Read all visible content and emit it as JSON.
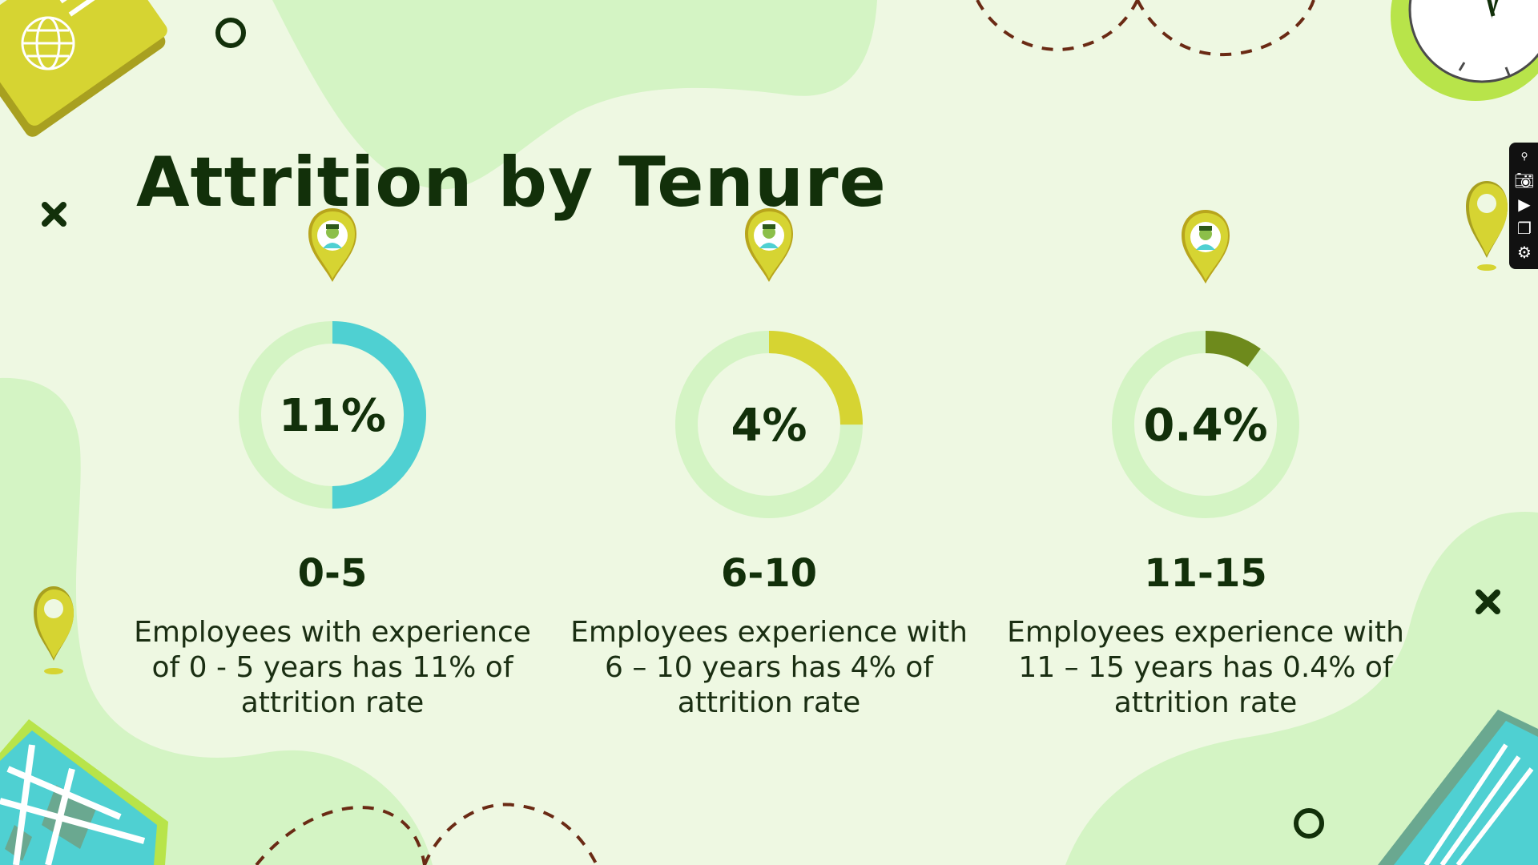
{
  "title": "Attrition by Tenure",
  "colors": {
    "background": "#eef8e2",
    "blob": "#d4f4c4",
    "track": "#d4f4c4",
    "text": "#12300a"
  },
  "icons": [
    "globe-icon",
    "clock-icon",
    "map-pin-icon",
    "person-pin-icon",
    "map-icon",
    "ruler-icon",
    "close-x-icon",
    "circle-outline-icon"
  ],
  "toolbar_icons": [
    "pin-icon",
    "camera-icon",
    "video-icon",
    "window-icon",
    "gear-icon"
  ],
  "chart_data": [
    {
      "type": "donut",
      "value": 11,
      "label": "11%",
      "category": "0-5",
      "description": "Employees with experience of 0 - 5 years has 11% of attrition rate",
      "color": "#4fd0d2"
    },
    {
      "type": "donut",
      "value": 4,
      "label": "4%",
      "category": "6-10",
      "description": "Employees experience with 6 – 10 years has 4% of attrition rate",
      "color": "#d6d432"
    },
    {
      "type": "donut",
      "value": 0.4,
      "label": "0.4%",
      "category": "11-15",
      "description": "Employees experience with 11 – 15 years has 0.4% of attrition rate",
      "color": "#6e8a1c"
    }
  ]
}
